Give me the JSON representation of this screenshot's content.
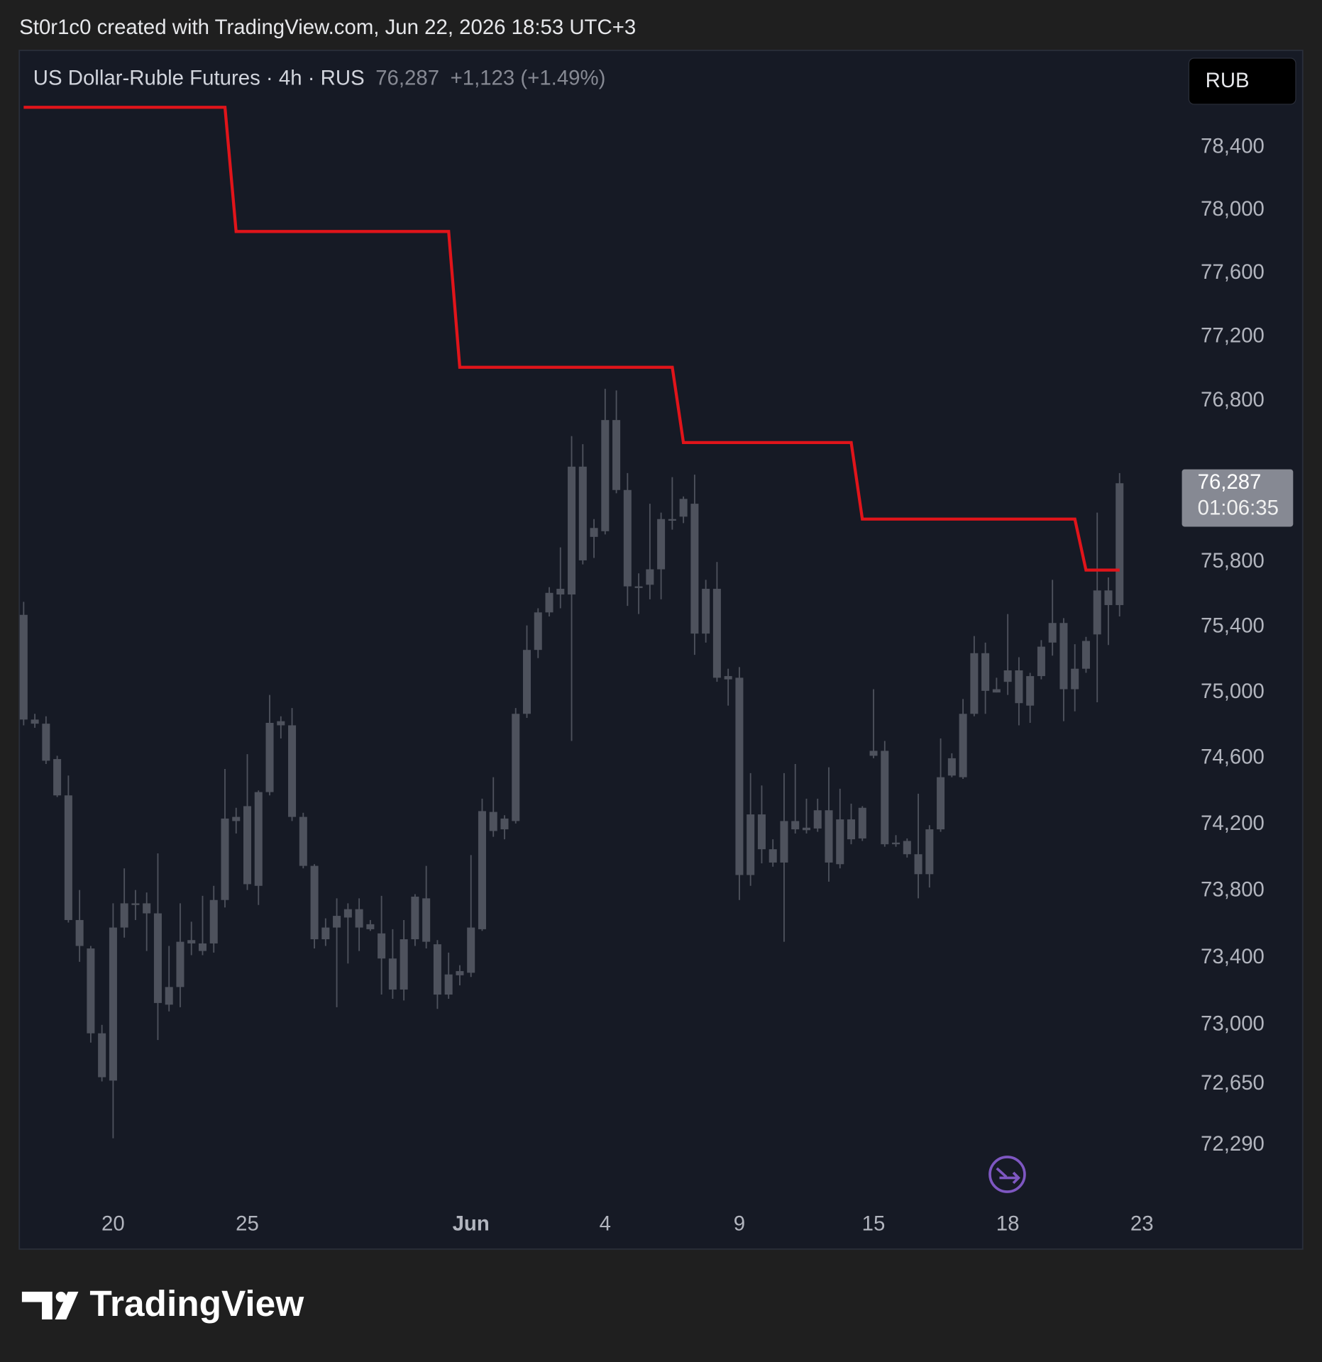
{
  "header": "St0r1c0 created with TradingView.com, Jun 22, 2026 18:53 UTC+3",
  "footer": {
    "logo": "TradingView"
  },
  "chart_data": {
    "type": "candlestick",
    "legend": {
      "symbol": "US Dollar-Ruble Futures · 4h · RUS",
      "price": "76,287",
      "change": "+1,123 (+1.49%)"
    },
    "currency_button": "RUB",
    "price_tag": {
      "price": "76,287",
      "countdown": "01:06:35"
    },
    "log_scale": true,
    "grid": false,
    "color": "#4e525d",
    "ylim": [
      71950,
      79020
    ],
    "yticks": [
      {
        "value": 72290,
        "label": "72,290"
      },
      {
        "value": 72650,
        "label": "72,650"
      },
      {
        "value": 73000,
        "label": "73,000"
      },
      {
        "value": 73400,
        "label": "73,400"
      },
      {
        "value": 73800,
        "label": "73,800"
      },
      {
        "value": 74200,
        "label": "74,200"
      },
      {
        "value": 74600,
        "label": "74,600"
      },
      {
        "value": 75000,
        "label": "75,000"
      },
      {
        "value": 75400,
        "label": "75,400"
      },
      {
        "value": 75800,
        "label": "75,800"
      },
      {
        "value": 76800,
        "label": "76,800"
      },
      {
        "value": 77200,
        "label": "77,200"
      },
      {
        "value": 77600,
        "label": "77,600"
      },
      {
        "value": 78000,
        "label": "78,000"
      },
      {
        "value": 78400,
        "label": "78,400"
      }
    ],
    "categories": [
      null,
      null,
      null,
      null,
      null,
      null,
      null,
      null,
      "20",
      null,
      null,
      null,
      null,
      null,
      null,
      null,
      null,
      null,
      null,
      null,
      "25",
      null,
      null,
      null,
      null,
      null,
      null,
      null,
      null,
      null,
      null,
      null,
      null,
      null,
      null,
      null,
      null,
      null,
      null,
      null,
      "Jun",
      null,
      null,
      null,
      null,
      null,
      null,
      null,
      null,
      null,
      null,
      null,
      "4",
      null,
      null,
      null,
      null,
      null,
      null,
      null,
      null,
      null,
      null,
      null,
      "9",
      null,
      null,
      null,
      null,
      null,
      null,
      null,
      null,
      null,
      null,
      null,
      "15",
      null,
      null,
      null,
      null,
      null,
      null,
      null,
      null,
      null,
      null,
      null,
      "18",
      null,
      null,
      null,
      null,
      null,
      null,
      null,
      null,
      null,
      null,
      null,
      "23"
    ],
    "bold_categories": [
      "Jun"
    ],
    "open": [
      75475,
      74835,
      74810,
      74595,
      74375,
      73625,
      73455,
      72950,
      72670,
      73580,
      73725,
      73725,
      73665,
      73120,
      73225,
      73485,
      73485,
      73485,
      73745,
      74220,
      74310,
      73830,
      74395,
      74800,
      74800,
      74245,
      73950,
      73510,
      73580,
      73640,
      73690,
      73600,
      73545,
      73395,
      73210,
      73510,
      73755,
      73480,
      73180,
      73295,
      73310,
      73570,
      74275,
      74170,
      74220,
      74870,
      75260,
      75490,
      75600,
      75600,
      76390,
      75955,
      75990,
      76680,
      76245,
      75650,
      75660,
      75755,
      76055,
      76080,
      76160,
      75360,
      75635,
      75100,
      75090,
      73895,
      74260,
      74050,
      73970,
      74220,
      74180,
      74175,
      74285,
      73960,
      74230,
      74115,
      74615,
      74645,
      74090,
      74100,
      74020,
      73900,
      74170,
      74495,
      74485,
      74870,
      75240,
      75000,
      75065,
      75135,
      74920,
      75100,
      75305,
      75425,
      75020,
      75145,
      75355,
      75625,
      75535,
      null,
      null
    ],
    "high": [
      75555,
      74870,
      74855,
      74615,
      74495,
      73805,
      73470,
      73000,
      73725,
      73935,
      73805,
      73790,
      74025,
      73470,
      73725,
      73615,
      73770,
      73830,
      74535,
      74300,
      74625,
      74405,
      74985,
      74855,
      74905,
      74270,
      73960,
      73635,
      73755,
      73725,
      73755,
      73625,
      73770,
      73570,
      73625,
      73780,
      73950,
      73505,
      73430,
      73355,
      74015,
      74355,
      74485,
      74255,
      74905,
      75410,
      75515,
      75645,
      75890,
      76580,
      76530,
      76065,
      76875,
      76865,
      76350,
      75730,
      76160,
      76105,
      76325,
      76205,
      76340,
      75690,
      75800,
      75145,
      75155,
      74510,
      74435,
      74110,
      74510,
      74565,
      74355,
      74355,
      74545,
      74415,
      74325,
      74310,
      75020,
      74705,
      74135,
      74115,
      74385,
      74195,
      74720,
      74630,
      74960,
      75345,
      75305,
      75090,
      75480,
      75215,
      75120,
      75320,
      75690,
      75455,
      75295,
      75340,
      76105,
      75705,
      76350,
      null,
      null
    ],
    "low": [
      74800,
      74785,
      74565,
      74365,
      73610,
      73375,
      72895,
      72665,
      72330,
      73520,
      73625,
      73440,
      72910,
      73080,
      73105,
      73415,
      73415,
      73430,
      73700,
      74145,
      73805,
      73715,
      74375,
      74720,
      74220,
      73935,
      73455,
      73470,
      73105,
      73365,
      73440,
      73560,
      73180,
      73155,
      73145,
      73470,
      73455,
      73095,
      73155,
      73235,
      73285,
      73560,
      74125,
      74110,
      74205,
      74845,
      75210,
      75465,
      75515,
      74705,
      75785,
      75825,
      75970,
      76225,
      75530,
      75480,
      75570,
      75570,
      76000,
      76040,
      75230,
      75305,
      75065,
      74920,
      73745,
      73830,
      73965,
      73945,
      73495,
      74145,
      74145,
      74155,
      73855,
      73935,
      74080,
      74100,
      74600,
      74065,
      74065,
      74000,
      73755,
      73820,
      74155,
      74485,
      74475,
      74855,
      74870,
      75000,
      74985,
      74800,
      74815,
      75080,
      75225,
      74825,
      74885,
      75120,
      74940,
      75290,
      75465,
      null,
      null
    ],
    "close": [
      74835,
      74810,
      74585,
      74375,
      73625,
      73470,
      72950,
      72690,
      73580,
      73725,
      73715,
      73665,
      73130,
      73225,
      73495,
      73505,
      73440,
      73745,
      74235,
      74245,
      73840,
      74395,
      74815,
      74825,
      74245,
      73950,
      73510,
      73580,
      73650,
      73690,
      73580,
      73570,
      73395,
      73210,
      73510,
      73765,
      73495,
      73180,
      73300,
      73320,
      73580,
      74280,
      74160,
      74235,
      74870,
      75260,
      75490,
      75610,
      75635,
      76390,
      75810,
      76010,
      76680,
      76245,
      75650,
      75640,
      75755,
      76065,
      76065,
      76190,
      75360,
      75635,
      75090,
      75080,
      73895,
      74260,
      74050,
      73970,
      74220,
      74170,
      74165,
      74285,
      73970,
      74230,
      74110,
      74300,
      74645,
      74080,
      74080,
      74020,
      73900,
      74170,
      74485,
      74600,
      74870,
      75240,
      75010,
      75020,
      75135,
      74935,
      75100,
      75280,
      75425,
      75020,
      75145,
      75315,
      75625,
      75535,
      76287,
      null,
      null
    ],
    "overlay": {
      "color": "#e0141a",
      "values": [
        78655,
        78655,
        78655,
        78655,
        78655,
        78655,
        78655,
        78655,
        78655,
        78655,
        78655,
        78655,
        78655,
        78655,
        78655,
        78655,
        78655,
        78655,
        78655,
        77865,
        77865,
        77865,
        77865,
        77865,
        77865,
        77865,
        77865,
        77865,
        77865,
        77865,
        77865,
        77865,
        77865,
        77865,
        77865,
        77865,
        77865,
        77865,
        77865,
        77010,
        77010,
        77010,
        77010,
        77010,
        77010,
        77010,
        77010,
        77010,
        77010,
        77010,
        77010,
        77010,
        77010,
        77010,
        77010,
        77010,
        77010,
        77010,
        77010,
        76540,
        76540,
        76540,
        76540,
        76540,
        76540,
        76540,
        76540,
        76540,
        76540,
        76540,
        76540,
        76540,
        76540,
        76540,
        76540,
        76065,
        76065,
        76065,
        76065,
        76065,
        76065,
        76065,
        76065,
        76065,
        76065,
        76065,
        76065,
        76065,
        76065,
        76065,
        76065,
        76065,
        76065,
        76065,
        76065,
        75750,
        75750,
        75750,
        75750,
        null,
        null
      ]
    }
  }
}
